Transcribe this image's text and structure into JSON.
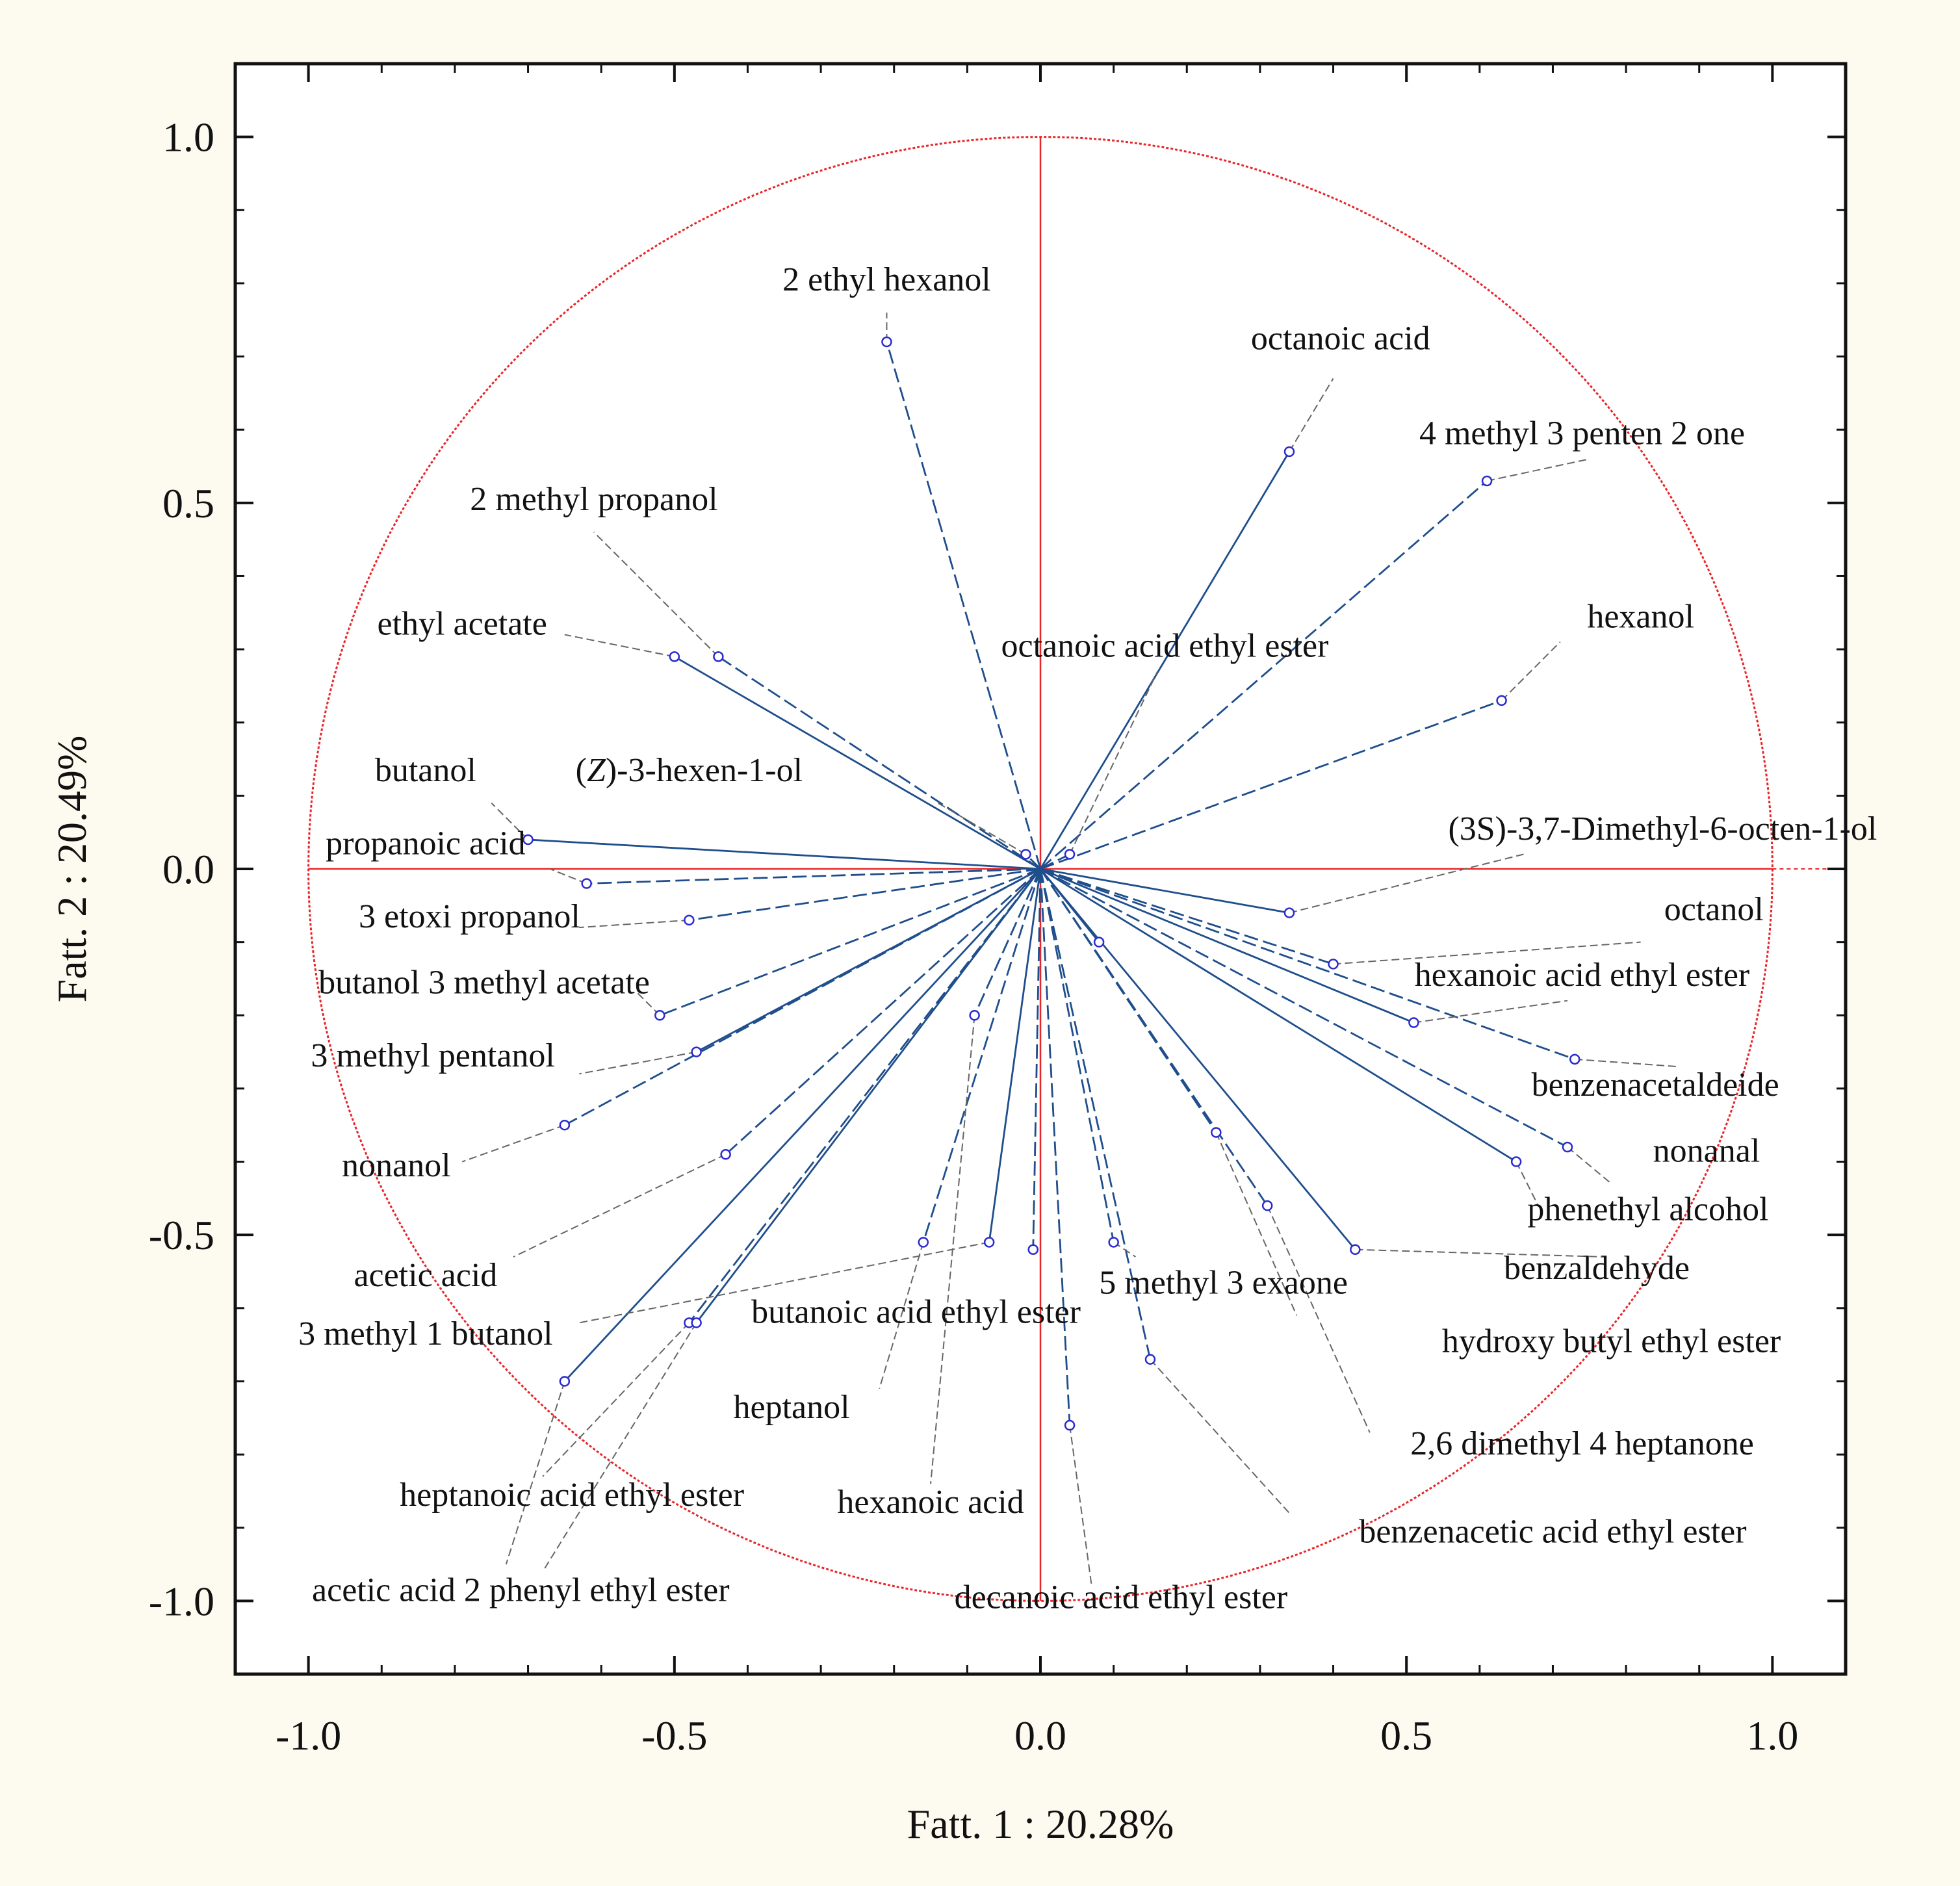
{
  "chart_data": {
    "type": "scatter",
    "subtype": "pca-loading-plot",
    "xlabel": "Fatt.  1 : 20.28%",
    "ylabel": "Fatt.  2 : 20.49%",
    "xlim": [
      -1.1,
      1.1
    ],
    "ylim": [
      -1.1,
      1.1
    ],
    "x_ticks": [
      -1.0,
      -0.5,
      0.0,
      0.5,
      1.0
    ],
    "y_ticks": [
      1.0,
      0.5,
      0.0,
      -0.5,
      -1.0
    ],
    "x_tick_labels": [
      "-1.0",
      "-0.5",
      "0.0",
      "0.5",
      "1.0"
    ],
    "y_tick_labels": [
      "1.0",
      "0.5",
      "0.0",
      "-0.5",
      "-1.0"
    ],
    "unit_circle": true,
    "colors": {
      "background": "#fdfbf0",
      "circle": "#e8262a",
      "vector": "#1f4e8c",
      "point": "#2a2ad0",
      "leader": "#666666",
      "axis": "#111111"
    },
    "points": [
      {
        "name": "2 ethyl hexanol",
        "x": -0.21,
        "y": 0.72,
        "label_anchor": [
          -0.21,
          0.76
        ],
        "label_pos": [
          -0.21,
          0.79
        ]
      },
      {
        "name": "octanoic acid",
        "x": 0.34,
        "y": 0.57,
        "label_anchor": [
          0.4,
          0.67
        ],
        "label_pos": [
          0.41,
          0.71
        ]
      },
      {
        "name": "4 methyl 3 penten 2 one",
        "x": 0.61,
        "y": 0.53,
        "label_anchor": [
          0.75,
          0.56
        ],
        "label_pos": [
          0.74,
          0.58
        ]
      },
      {
        "name": "2 methyl propanol",
        "x": -0.44,
        "y": 0.29,
        "label_anchor": [
          -0.61,
          0.46
        ],
        "label_pos": [
          -0.61,
          0.49
        ]
      },
      {
        "name": "ethyl acetate",
        "x": -0.5,
        "y": 0.29,
        "label_anchor": [
          -0.65,
          0.32
        ],
        "label_pos": [
          -0.79,
          0.32
        ]
      },
      {
        "name": "hexanol",
        "x": 0.63,
        "y": 0.23,
        "label_anchor": [
          0.71,
          0.31
        ],
        "label_pos": [
          0.82,
          0.33
        ]
      },
      {
        "name": "octanoic acid ethyl ester",
        "x": 0.04,
        "y": 0.02,
        "label_anchor": [
          0.16,
          0.27
        ],
        "label_pos": [
          0.17,
          0.29
        ]
      },
      {
        "name": "butanol",
        "x": -0.7,
        "y": 0.04,
        "label_anchor": [
          -0.75,
          0.09
        ],
        "label_pos": [
          -0.84,
          0.12
        ]
      },
      {
        "name": "(Z)-3-hexen-1-ol",
        "x": -0.02,
        "y": 0.02,
        "label_anchor": [
          -0.14,
          0.09
        ],
        "label_pos": [
          -0.48,
          0.12
        ]
      },
      {
        "name": "propanoic acid",
        "x": -0.62,
        "y": -0.02,
        "label_anchor": [
          -0.67,
          0.0
        ],
        "label_pos": [
          -0.84,
          0.02
        ]
      },
      {
        "name": "(3S)-3,7-Dimethyl-6-octen-1-ol",
        "x": 0.34,
        "y": -0.06,
        "label_anchor": [
          0.66,
          0.02
        ],
        "label_pos": [
          0.85,
          0.04
        ]
      },
      {
        "name": "3 etoxi propanol",
        "x": -0.48,
        "y": -0.07,
        "label_anchor": [
          -0.63,
          -0.08
        ],
        "label_pos": [
          -0.78,
          -0.08
        ]
      },
      {
        "name": "octanol",
        "x": 0.4,
        "y": -0.13,
        "label_anchor": [
          0.82,
          -0.1
        ],
        "label_pos": [
          0.92,
          -0.07
        ]
      },
      {
        "name": "hexanoic acid ethyl ester",
        "x": 0.51,
        "y": -0.21,
        "label_anchor": [
          0.72,
          -0.18
        ],
        "label_pos": [
          0.74,
          -0.16
        ]
      },
      {
        "name": "butanol 3 methyl acetate",
        "x": -0.52,
        "y": -0.2,
        "label_anchor": [
          -0.55,
          -0.17
        ],
        "label_pos": [
          -0.76,
          -0.17
        ]
      },
      {
        "name": "benzenacetaldeide",
        "x": 0.73,
        "y": -0.26,
        "label_anchor": [
          0.87,
          -0.27
        ],
        "label_pos": [
          0.84,
          -0.31
        ]
      },
      {
        "name": "3 methyl pentanol",
        "x": -0.47,
        "y": -0.25,
        "label_anchor": [
          -0.63,
          -0.28
        ],
        "label_pos": [
          -0.83,
          -0.27
        ]
      },
      {
        "name": "nonanol",
        "x": -0.65,
        "y": -0.35,
        "label_anchor": [
          -0.79,
          -0.4
        ],
        "label_pos": [
          -0.88,
          -0.42
        ]
      },
      {
        "name": "nonanal",
        "x": 0.72,
        "y": -0.38,
        "label_anchor": [
          0.78,
          -0.43
        ],
        "label_pos": [
          0.91,
          -0.4
        ]
      },
      {
        "name": "phenethyl alcohol",
        "x": 0.65,
        "y": -0.4,
        "label_anchor": [
          0.68,
          -0.46
        ],
        "label_pos": [
          0.83,
          -0.48
        ]
      },
      {
        "name": "acetic acid",
        "x": -0.43,
        "y": -0.39,
        "label_anchor": [
          -0.72,
          -0.53
        ],
        "label_pos": [
          -0.84,
          -0.57
        ]
      },
      {
        "name": "5 methyl 3 exaone",
        "x": 0.1,
        "y": -0.51,
        "label_anchor": [
          0.13,
          -0.53
        ],
        "label_pos": [
          0.25,
          -0.58
        ]
      },
      {
        "name": "benzaldehyde",
        "x": 0.43,
        "y": -0.52,
        "label_anchor": [
          0.77,
          -0.53
        ],
        "label_pos": [
          0.76,
          -0.56
        ]
      },
      {
        "name": "hydroxy butyl ethyl ester",
        "x": 0.24,
        "y": -0.36,
        "label_anchor": [
          0.35,
          -0.61
        ],
        "label_pos": [
          0.78,
          -0.66
        ]
      },
      {
        "name": "heptanol",
        "x": -0.16,
        "y": -0.51,
        "label_anchor": [
          -0.22,
          -0.71
        ],
        "label_pos": [
          -0.34,
          -0.75
        ]
      },
      {
        "name": "butanoic acid ethyl ester",
        "x": -0.07,
        "y": -0.51,
        "label_anchor": [
          -0.63,
          -0.62
        ],
        "label_pos": [
          -0.17,
          -0.62
        ]
      },
      {
        "name": "3 methyl 1 butanol",
        "x": -0.48,
        "y": -0.62,
        "label_anchor": [
          -0.68,
          -0.83
        ],
        "label_pos": [
          -0.84,
          -0.65
        ]
      },
      {
        "name": "2,6 dimethyl 4 heptanone",
        "x": 0.31,
        "y": -0.46,
        "label_anchor": [
          0.45,
          -0.77
        ],
        "label_pos": [
          0.74,
          -0.8
        ]
      },
      {
        "name": "heptanoic acid ethyl ester",
        "x": -0.65,
        "y": -0.7,
        "label_anchor": [
          -0.73,
          -0.95
        ],
        "label_pos": [
          -0.64,
          -0.87
        ]
      },
      {
        "name": "hexanoic acid",
        "x": -0.09,
        "y": -0.2,
        "label_anchor": [
          -0.15,
          -0.84
        ],
        "label_pos": [
          -0.15,
          -0.88
        ]
      },
      {
        "name": "benzenacetic acid ethyl ester",
        "x": 0.15,
        "y": -0.67,
        "label_anchor": [
          0.34,
          -0.88
        ],
        "label_pos": [
          0.7,
          -0.92
        ]
      },
      {
        "name": "acetic acid 2 phenyl ethyl ester",
        "x": -0.47,
        "y": -0.62,
        "label_anchor": [
          -0.68,
          -0.96
        ],
        "label_pos": [
          -0.71,
          -1.0
        ]
      },
      {
        "name": "decanoic acid  ethyl ester",
        "x": 0.04,
        "y": -0.76,
        "label_anchor": [
          0.07,
          -0.98
        ],
        "label_pos": [
          0.11,
          -1.01
        ]
      },
      {
        "name": "",
        "x": -0.01,
        "y": -0.52
      },
      {
        "name": "",
        "x": 0.08,
        "y": -0.1
      }
    ]
  }
}
